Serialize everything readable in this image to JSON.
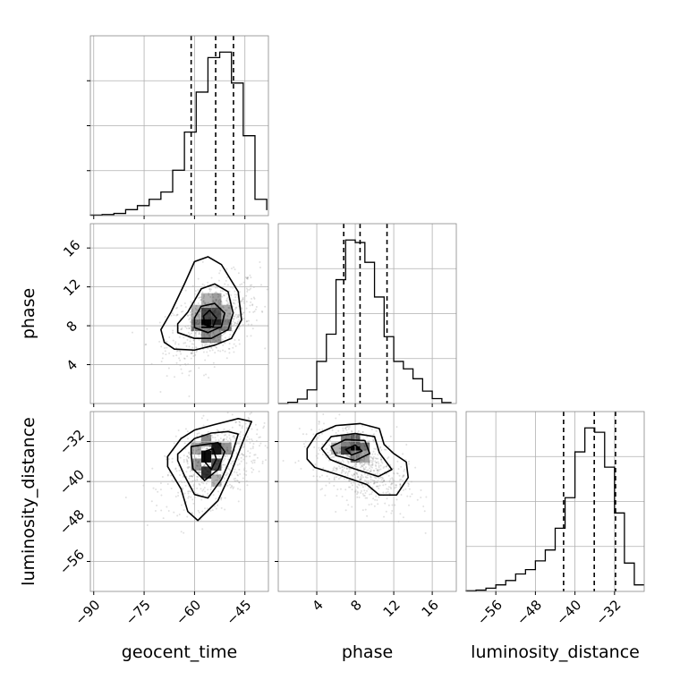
{
  "chart_data": {
    "type": "corner",
    "parameters": [
      "geocent_time",
      "phase",
      "luminosity_distance"
    ],
    "ranges": {
      "geocent_time": [
        -91,
        -38
      ],
      "phase": [
        0,
        18.5
      ],
      "luminosity_distance": [
        -62,
        -26
      ]
    },
    "ticks": {
      "geocent_time": [
        -90,
        -75,
        -60,
        -45
      ],
      "phase": [
        4,
        8,
        12,
        16
      ],
      "luminosity_distance": [
        -56,
        -48,
        -40,
        -32
      ]
    },
    "tick_labels": {
      "geocent_time": [
        "−90",
        "−75",
        "−60",
        "−45"
      ],
      "phase": [
        "4",
        "8",
        "12",
        "16"
      ],
      "luminosity_distance": [
        "−56",
        "−48",
        "−40",
        "−32"
      ]
    },
    "quantiles": {
      "geocent_time": [
        -61,
        -53.7,
        -48.4
      ],
      "phase": [
        6.8,
        8.5,
        11.3
      ],
      "luminosity_distance": [
        -42.3,
        -36.1,
        -31.8
      ]
    },
    "histograms": {
      "geocent_time": {
        "edges": [
          -91,
          -87.5,
          -84,
          -80.5,
          -77,
          -73.5,
          -70,
          -66.5,
          -63,
          -59.5,
          -56,
          -52.5,
          -49,
          -45.5,
          -42,
          -38.5
        ],
        "counts": [
          0.3,
          0.6,
          1.2,
          3.3,
          5.5,
          9,
          13,
          25,
          46,
          68,
          87,
          90,
          73,
          44,
          9,
          3
        ]
      },
      "phase": {
        "edges": [
          0,
          1,
          2,
          3,
          4,
          5,
          6,
          7,
          8,
          9,
          10,
          11,
          12,
          13,
          14,
          15,
          16,
          17,
          18
        ],
        "counts": [
          0,
          0.5,
          1.8,
          5.5,
          17,
          28,
          50,
          66,
          65,
          57,
          43,
          27,
          17,
          14,
          10,
          5,
          2,
          0.4
        ]
      },
      "luminosity_distance": {
        "edges": [
          -62,
          -60,
          -58,
          -56,
          -54,
          -52,
          -50,
          -48,
          -46,
          -44,
          -42,
          -40,
          -38,
          -36,
          -34,
          -32,
          -30,
          -28,
          -26
        ],
        "counts": [
          0.3,
          0.6,
          1.5,
          3,
          5,
          8,
          10,
          14,
          19,
          29,
          43,
          64,
          75,
          73,
          57,
          36,
          13,
          3
        ]
      }
    },
    "contours": {
      "phase_vs_geocent_time": [
        [
          [
            -69,
            6.3
          ],
          [
            -66,
            5.6
          ],
          [
            -60,
            5.5
          ],
          [
            -54,
            6
          ],
          [
            -49,
            6.7
          ],
          [
            -46,
            8.6
          ],
          [
            -47,
            11.5
          ],
          [
            -52,
            14.3
          ],
          [
            -56,
            15.1
          ],
          [
            -60,
            14.6
          ],
          [
            -63,
            12.3
          ],
          [
            -67,
            9.4
          ],
          [
            -70,
            7.6
          ]
        ],
        [
          [
            -65,
            7.3
          ],
          [
            -60,
            6.7
          ],
          [
            -55,
            6.7
          ],
          [
            -50,
            7.6
          ],
          [
            -48.5,
            9.3
          ],
          [
            -50,
            11.5
          ],
          [
            -54,
            12.3
          ],
          [
            -58,
            11.8
          ],
          [
            -62,
            9.4
          ],
          [
            -65,
            8.2
          ]
        ],
        [
          [
            -60,
            7.8
          ],
          [
            -56,
            7.3
          ],
          [
            -52,
            7.9
          ],
          [
            -51,
            9.3
          ],
          [
            -54,
            10.3
          ],
          [
            -58,
            10
          ],
          [
            -60,
            8.8
          ]
        ],
        [
          [
            -57,
            8.1
          ],
          [
            -54.5,
            7.9
          ],
          [
            -53.5,
            8.8
          ],
          [
            -55.5,
            9.6
          ],
          [
            -57.3,
            9
          ]
        ]
      ],
      "luminosity_distance_vs_geocent_time": [
        [
          [
            -68,
            -35
          ],
          [
            -64,
            -31.4
          ],
          [
            -60,
            -29.7
          ],
          [
            -54,
            -28.6
          ],
          [
            -47,
            -27.4
          ],
          [
            -43,
            -28
          ],
          [
            -45,
            -31
          ],
          [
            -49,
            -38
          ],
          [
            -53,
            -43.8
          ],
          [
            -59,
            -47.8
          ],
          [
            -62,
            -46
          ],
          [
            -64,
            -41.5
          ],
          [
            -68,
            -37
          ]
        ],
        [
          [
            -65,
            -34.5
          ],
          [
            -60,
            -31.4
          ],
          [
            -55,
            -30.3
          ],
          [
            -50,
            -30
          ],
          [
            -47,
            -30.5
          ],
          [
            -49,
            -35
          ],
          [
            -52,
            -39.6
          ],
          [
            -56,
            -43.3
          ],
          [
            -60,
            -42.6
          ],
          [
            -63,
            -38.8
          ],
          [
            -65,
            -35.8
          ]
        ],
        [
          [
            -61,
            -33
          ],
          [
            -57,
            -32.6
          ],
          [
            -53,
            -32.2
          ],
          [
            -51,
            -34
          ],
          [
            -53,
            -37.6
          ],
          [
            -57,
            -39.8
          ],
          [
            -60.5,
            -37.4
          ],
          [
            -61,
            -34.6
          ]
        ],
        [
          [
            -57,
            -34
          ],
          [
            -54.5,
            -33.4
          ],
          [
            -53.5,
            -35.5
          ],
          [
            -55,
            -37.6
          ],
          [
            -57,
            -36
          ]
        ]
      ],
      "luminosity_distance_vs_phase": [
        [
          [
            3,
            -33.4
          ],
          [
            4,
            -30.5
          ],
          [
            6,
            -28.8
          ],
          [
            8.5,
            -28.4
          ],
          [
            10.5,
            -29.4
          ],
          [
            11,
            -32.6
          ],
          [
            12,
            -34.4
          ],
          [
            13.3,
            -36.1
          ],
          [
            13.5,
            -39.2
          ],
          [
            12.3,
            -42.7
          ],
          [
            10.5,
            -42.7
          ],
          [
            9.2,
            -40.6
          ],
          [
            6.5,
            -38.8
          ],
          [
            3.8,
            -37.2
          ],
          [
            3,
            -35.5
          ]
        ],
        [
          [
            4.5,
            -33.4
          ],
          [
            5.5,
            -31
          ],
          [
            8,
            -30.4
          ],
          [
            10,
            -31
          ],
          [
            10.5,
            -34.2
          ],
          [
            11.8,
            -37.6
          ],
          [
            10.4,
            -39
          ],
          [
            7.5,
            -37.2
          ],
          [
            5.4,
            -35.6
          ]
        ],
        [
          [
            5.5,
            -33
          ],
          [
            7,
            -31.6
          ],
          [
            9,
            -31.8
          ],
          [
            9.5,
            -34.4
          ],
          [
            8,
            -35.8
          ],
          [
            6,
            -34.8
          ]
        ],
        [
          [
            7,
            -33.6
          ],
          [
            8,
            -32.7
          ],
          [
            8.7,
            -33.9
          ],
          [
            7.6,
            -34.7
          ]
        ]
      ]
    },
    "density_cells": {
      "phase_vs_geocent_time": [
        {
          "x": -56.5,
          "y": 8.2,
          "w": 0.98
        },
        {
          "x": -53.5,
          "y": 8.2,
          "w": 0.85
        },
        {
          "x": -56.5,
          "y": 9.4,
          "w": 0.72
        },
        {
          "x": -53.5,
          "y": 9.4,
          "w": 0.68
        },
        {
          "x": -59.5,
          "y": 8.2,
          "w": 0.5
        },
        {
          "x": -50.5,
          "y": 8.2,
          "w": 0.5
        },
        {
          "x": -56.5,
          "y": 7,
          "w": 0.45
        },
        {
          "x": -53.5,
          "y": 7,
          "w": 0.42
        },
        {
          "x": -53.5,
          "y": 10.6,
          "w": 0.38
        },
        {
          "x": -56.5,
          "y": 10.6,
          "w": 0.3
        },
        {
          "x": -50.5,
          "y": 9.4,
          "w": 0.34
        },
        {
          "x": -59.5,
          "y": 9.4,
          "w": 0.3
        }
      ],
      "luminosity_distance_vs_geocent_time": [
        {
          "x": -56.5,
          "y": -35,
          "w": 0.95
        },
        {
          "x": -53.5,
          "y": -33.4,
          "w": 0.9
        },
        {
          "x": -56.5,
          "y": -38.2,
          "w": 0.8
        },
        {
          "x": -53.5,
          "y": -36.6,
          "w": 0.7
        },
        {
          "x": -59.5,
          "y": -36.6,
          "w": 0.42
        },
        {
          "x": -50.5,
          "y": -33.4,
          "w": 0.42
        },
        {
          "x": -59.5,
          "y": -33.4,
          "w": 0.36
        },
        {
          "x": -56.5,
          "y": -31.8,
          "w": 0.45
        },
        {
          "x": -53.5,
          "y": -39.8,
          "w": 0.3
        }
      ],
      "luminosity_distance_vs_phase": [
        {
          "x": 8,
          "y": -33.4,
          "w": 0.98
        },
        {
          "x": 7,
          "y": -33.4,
          "w": 0.75
        },
        {
          "x": 8,
          "y": -31.8,
          "w": 0.6
        },
        {
          "x": 7,
          "y": -31.8,
          "w": 0.5
        },
        {
          "x": 9,
          "y": -33.4,
          "w": 0.55
        },
        {
          "x": 8,
          "y": -35,
          "w": 0.5
        },
        {
          "x": 9,
          "y": -35,
          "w": 0.35
        },
        {
          "x": 6,
          "y": -33.4,
          "w": 0.3
        }
      ]
    },
    "scatter_centers": {
      "geocent_time": -54.5,
      "phase": 8.5,
      "luminosity_distance": -36.5
    },
    "grid": true,
    "colors": {
      "line": "#000000",
      "grid": "#b0b0b0",
      "scatter": "#000000"
    }
  }
}
